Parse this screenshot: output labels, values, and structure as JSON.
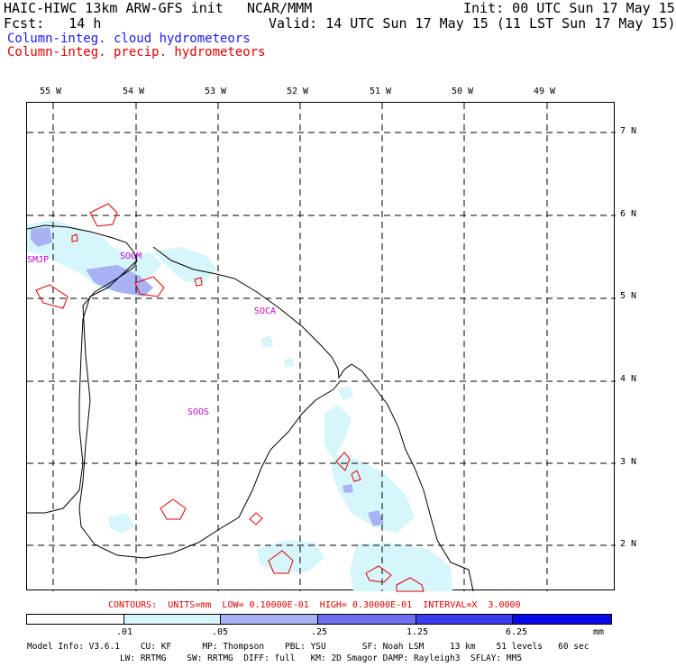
{
  "header": {
    "model_title": "HAIC-HIWC 13km ARW-GFS init",
    "org": "NCAR/MMM",
    "init": "Init: 00 UTC Sun 17 May 15",
    "fcst": "Fcst:   14 h",
    "valid": "Valid: 14 UTC Sun 17 May 15 (11 LST Sun 17 May 15)",
    "legend_cloud": "Column-integ. cloud hydrometeors",
    "legend_precip": "Column-integ. precip. hydrometeors"
  },
  "lon_labels": [
    "55 W",
    "54 W",
    "53 W",
    "52 W",
    "51 W",
    "50 W",
    "49 W"
  ],
  "lat_labels": [
    "7 N",
    "6 N",
    "5 N",
    "4 N",
    "3 N",
    "2 N"
  ],
  "stations": [
    "SMJP",
    "SOCM",
    "SOCA",
    "SOOS"
  ],
  "contour_note": "CONTOURS:  UNITS=mm  LOW= 0.10000E-01  HIGH= 0.30000E-01  INTERVAL=X  3.0000",
  "colorbar": {
    "ticks": [
      ".01",
      ".05",
      ".25",
      "1.25",
      "6.25"
    ],
    "units": "mm",
    "colors": [
      "#ffffff",
      "#d6f6fb",
      "#a8b2f4",
      "#6f6ff0",
      "#3b3bef",
      "#0a0ae8"
    ]
  },
  "footer": {
    "line1": "Model Info: V3.6.1    CU: KF      MP: Thompson    PBL: YSU       SF: Noah LSM     13 km    51 levels   60 sec",
    "line2": "                  LW: RRTMG    SW: RRTMG  DIFF: full   KM: 2D Smagor DAMP: Rayleigh3  SFLAY: MM5"
  }
}
